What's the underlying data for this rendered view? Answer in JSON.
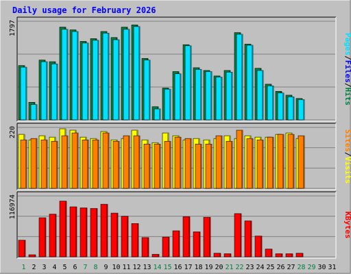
{
  "chart_data": [
    {
      "type": "bar",
      "panel": "hits-files-pages",
      "title": "Daily usage for February 2026",
      "categories": [
        "1",
        "2",
        "3",
        "4",
        "5",
        "6",
        "7",
        "8",
        "9",
        "10",
        "11",
        "12",
        "13",
        "14",
        "15",
        "16",
        "17",
        "18",
        "19",
        "20",
        "21",
        "22",
        "23",
        "24",
        "25",
        "26",
        "27",
        "28",
        "29",
        "30",
        "31"
      ],
      "ymax_label": "1797",
      "ylim": [
        0,
        1797
      ],
      "grid": true,
      "series": [
        {
          "name": "Hits",
          "color": "#008040",
          "values": [
            990,
            320,
            1090,
            1060,
            1690,
            1640,
            1430,
            1480,
            1610,
            1500,
            1690,
            1730,
            1120,
            240,
            580,
            880,
            1370,
            950,
            900,
            800,
            900,
            1590,
            1380,
            940,
            650,
            520,
            450,
            390,
            0,
            0,
            0
          ]
        },
        {
          "name": "Files",
          "color": "#0000ff",
          "values": [
            0,
            0,
            0,
            0,
            0,
            0,
            0,
            0,
            0,
            0,
            0,
            0,
            0,
            0,
            0,
            0,
            0,
            0,
            0,
            0,
            0,
            0,
            0,
            0,
            0,
            0,
            0,
            0,
            0,
            0,
            0
          ]
        },
        {
          "name": "Pages",
          "color": "#00e0ff",
          "values": [
            960,
            280,
            1060,
            1020,
            1650,
            1610,
            1400,
            1450,
            1580,
            1460,
            1650,
            1700,
            1090,
            200,
            560,
            840,
            1350,
            920,
            880,
            780,
            870,
            1560,
            1360,
            900,
            620,
            490,
            420,
            370,
            0,
            0,
            0
          ]
        }
      ],
      "legend": [
        "Pages",
        "Files",
        "Hits"
      ],
      "legend_placement": "right"
    },
    {
      "type": "bar",
      "panel": "visits-sites",
      "categories": [
        "1",
        "2",
        "3",
        "4",
        "5",
        "6",
        "7",
        "8",
        "9",
        "10",
        "11",
        "12",
        "13",
        "14",
        "15",
        "16",
        "17",
        "18",
        "19",
        "20",
        "21",
        "22",
        "23",
        "24",
        "25",
        "26",
        "27",
        "28",
        "29",
        "30",
        "31"
      ],
      "ymax_label": "220",
      "ylim": [
        0,
        220
      ],
      "grid": true,
      "series": [
        {
          "name": "Visits",
          "color": "#ffff00",
          "values": [
            195,
            175,
            190,
            185,
            215,
            210,
            185,
            180,
            205,
            175,
            180,
            210,
            175,
            165,
            200,
            190,
            175,
            180,
            175,
            180,
            190,
            180,
            190,
            185,
            185,
            195,
            200,
            180,
            0,
            0,
            0
          ]
        },
        {
          "name": "Sites",
          "color": "#ff8000",
          "values": [
            175,
            180,
            175,
            170,
            190,
            200,
            175,
            175,
            200,
            170,
            190,
            190,
            160,
            160,
            170,
            185,
            180,
            160,
            160,
            190,
            170,
            210,
            180,
            175,
            185,
            195,
            195,
            190,
            0,
            0,
            0
          ]
        }
      ],
      "legend": [
        "Sites",
        "Visits"
      ],
      "legend_placement": "right"
    },
    {
      "type": "bar",
      "panel": "kbytes",
      "categories": [
        "1",
        "2",
        "3",
        "4",
        "5",
        "6",
        "7",
        "8",
        "9",
        "10",
        "11",
        "12",
        "13",
        "14",
        "15",
        "16",
        "17",
        "18",
        "19",
        "20",
        "21",
        "22",
        "23",
        "24",
        "25",
        "26",
        "27",
        "28",
        "29",
        "30",
        "31"
      ],
      "ymax_label": "116974",
      "ylim": [
        0,
        116974
      ],
      "grid": true,
      "series": [
        {
          "name": "KBytes",
          "color": "#ff0000",
          "values": [
            32000,
            4000,
            75000,
            82000,
            107000,
            96000,
            94000,
            93000,
            101000,
            84000,
            78000,
            64000,
            37000,
            5000,
            38000,
            50000,
            77000,
            48000,
            76000,
            7000,
            6000,
            83000,
            69000,
            40000,
            15000,
            6000,
            6000,
            7000,
            0,
            0,
            0
          ]
        }
      ],
      "legend": [
        "KBytes"
      ],
      "legend_placement": "right"
    }
  ],
  "x_labels": [
    {
      "label": "1",
      "weekend": true
    },
    {
      "label": "2",
      "weekend": false
    },
    {
      "label": "3",
      "weekend": false
    },
    {
      "label": "4",
      "weekend": false
    },
    {
      "label": "5",
      "weekend": false
    },
    {
      "label": "6",
      "weekend": false
    },
    {
      "label": "7",
      "weekend": true
    },
    {
      "label": "8",
      "weekend": true
    },
    {
      "label": "9",
      "weekend": false
    },
    {
      "label": "10",
      "weekend": false
    },
    {
      "label": "11",
      "weekend": false
    },
    {
      "label": "12",
      "weekend": false
    },
    {
      "label": "13",
      "weekend": false
    },
    {
      "label": "14",
      "weekend": true
    },
    {
      "label": "15",
      "weekend": true
    },
    {
      "label": "16",
      "weekend": false
    },
    {
      "label": "17",
      "weekend": false
    },
    {
      "label": "18",
      "weekend": false
    },
    {
      "label": "19",
      "weekend": false
    },
    {
      "label": "20",
      "weekend": false
    },
    {
      "label": "21",
      "weekend": true
    },
    {
      "label": "22",
      "weekend": true
    },
    {
      "label": "23",
      "weekend": false
    },
    {
      "label": "24",
      "weekend": false
    },
    {
      "label": "25",
      "weekend": false
    },
    {
      "label": "26",
      "weekend": false
    },
    {
      "label": "27",
      "weekend": false
    },
    {
      "label": "28",
      "weekend": true
    },
    {
      "label": "29",
      "weekend": true
    },
    {
      "label": "30",
      "weekend": false
    },
    {
      "label": "31",
      "weekend": false
    }
  ],
  "colors": {
    "background": "#c0c0c0",
    "title": "#0000ff",
    "weekend_label": "#008040",
    "weekday_label": "#000000",
    "grid": "#808080"
  }
}
